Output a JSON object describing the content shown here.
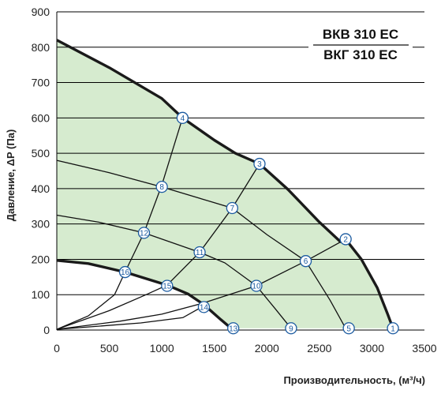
{
  "chart_data": {
    "type": "line",
    "xlabel": "Производительность, (м³/ч)",
    "ylabel": "Давление, ΔP (Па)",
    "xlim": [
      0,
      3500
    ],
    "ylim": [
      0,
      900
    ],
    "x_ticks": [
      "0",
      "500",
      "1000",
      "1500",
      "2000",
      "2500",
      "3000",
      "3500"
    ],
    "y_ticks": [
      "0",
      "100",
      "200",
      "300",
      "400",
      "500",
      "600",
      "700",
      "800",
      "900"
    ],
    "models": [
      "ВКВ 310 ЕС",
      "ВКГ 310 ЕС"
    ],
    "grid": "horizontal",
    "colors": {
      "fill": "#d6ebcf",
      "boundary": "#1a1a1a",
      "marker": "#1a5aa0",
      "grid": "#000000"
    },
    "max_curve": [
      {
        "x": 0,
        "y": 820
      },
      {
        "x": 500,
        "y": 742
      },
      {
        "x": 1000,
        "y": 655
      },
      {
        "x": 1197,
        "y": 600
      },
      {
        "x": 1500,
        "y": 537
      },
      {
        "x": 1700,
        "y": 500
      },
      {
        "x": 1930,
        "y": 470
      },
      {
        "x": 2200,
        "y": 398
      },
      {
        "x": 2500,
        "y": 305
      },
      {
        "x": 2700,
        "y": 250
      },
      {
        "x": 2750,
        "y": 257
      },
      {
        "x": 2900,
        "y": 200
      },
      {
        "x": 3050,
        "y": 120
      },
      {
        "x": 3150,
        "y": 45
      },
      {
        "x": 3200,
        "y": 5
      }
    ],
    "min_curve": [
      {
        "x": 0,
        "y": 197
      },
      {
        "x": 300,
        "y": 188
      },
      {
        "x": 650,
        "y": 164
      },
      {
        "x": 1050,
        "y": 127
      },
      {
        "x": 1250,
        "y": 102
      },
      {
        "x": 1400,
        "y": 72
      },
      {
        "x": 1560,
        "y": 30
      },
      {
        "x": 1660,
        "y": 5
      }
    ],
    "system_curves": [
      [
        {
          "x": 0,
          "y": 2
        },
        {
          "x": 300,
          "y": 40
        },
        {
          "x": 550,
          "y": 100
        },
        {
          "x": 650,
          "y": 164
        },
        {
          "x": 830,
          "y": 275
        },
        {
          "x": 1000,
          "y": 410
        },
        {
          "x": 1197,
          "y": 600
        }
      ],
      [
        {
          "x": 0,
          "y": 2
        },
        {
          "x": 500,
          "y": 55
        },
        {
          "x": 850,
          "y": 100
        },
        {
          "x": 1050,
          "y": 127
        },
        {
          "x": 1360,
          "y": 220
        },
        {
          "x": 1670,
          "y": 345
        },
        {
          "x": 1930,
          "y": 470
        }
      ],
      [
        {
          "x": 0,
          "y": 2
        },
        {
          "x": 600,
          "y": 25
        },
        {
          "x": 1000,
          "y": 45
        },
        {
          "x": 1380,
          "y": 75
        },
        {
          "x": 1900,
          "y": 125
        },
        {
          "x": 2370,
          "y": 195
        },
        {
          "x": 2750,
          "y": 257
        }
      ],
      [
        {
          "x": 0,
          "y": 2
        },
        {
          "x": 800,
          "y": 20
        },
        {
          "x": 1200,
          "y": 35
        },
        {
          "x": 1380,
          "y": 65
        }
      ]
    ],
    "speed_curves": [
      [
        {
          "x": 0,
          "y": 480
        },
        {
          "x": 500,
          "y": 445
        },
        {
          "x": 1000,
          "y": 405
        },
        {
          "x": 1670,
          "y": 345
        },
        {
          "x": 2000,
          "y": 270
        },
        {
          "x": 2370,
          "y": 195
        },
        {
          "x": 2600,
          "y": 85
        },
        {
          "x": 2750,
          "y": 5
        }
      ],
      [
        {
          "x": 0,
          "y": 325
        },
        {
          "x": 400,
          "y": 305
        },
        {
          "x": 830,
          "y": 275
        },
        {
          "x": 1360,
          "y": 220
        },
        {
          "x": 1600,
          "y": 190
        },
        {
          "x": 1900,
          "y": 125
        },
        {
          "x": 2080,
          "y": 60
        },
        {
          "x": 2230,
          "y": 5
        }
      ]
    ],
    "points": [
      {
        "label": "1",
        "x": 3200,
        "y": 5
      },
      {
        "label": "2",
        "x": 2750,
        "y": 257
      },
      {
        "label": "3",
        "x": 1930,
        "y": 470
      },
      {
        "label": "4",
        "x": 1197,
        "y": 600
      },
      {
        "label": "5",
        "x": 2780,
        "y": 5
      },
      {
        "label": "6",
        "x": 2370,
        "y": 195
      },
      {
        "label": "7",
        "x": 1670,
        "y": 345
      },
      {
        "label": "8",
        "x": 1000,
        "y": 405
      },
      {
        "label": "9",
        "x": 2230,
        "y": 5
      },
      {
        "label": "10",
        "x": 1900,
        "y": 125
      },
      {
        "label": "11",
        "x": 1360,
        "y": 220
      },
      {
        "label": "12",
        "x": 830,
        "y": 275
      },
      {
        "label": "13",
        "x": 1680,
        "y": 5
      },
      {
        "label": "14",
        "x": 1400,
        "y": 65
      },
      {
        "label": "15",
        "x": 1050,
        "y": 125
      },
      {
        "label": "16",
        "x": 650,
        "y": 164
      }
    ]
  }
}
